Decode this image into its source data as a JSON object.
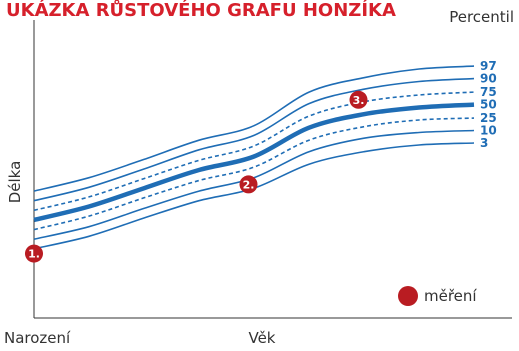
{
  "title": "UKÁZKA RŮSTOVÉHO GRAFU HONZÍKA",
  "chart_data": {
    "type": "line",
    "title": "UKÁZKA RŮSTOVÉHO GRAFU HONZÍKA",
    "xlabel": "Věk",
    "ylabel": "Délka",
    "x_start_label": "Narození",
    "legend_title": "Percentil",
    "measurement_legend": "měření",
    "series": [
      {
        "name": "97",
        "style": "solid",
        "values": [
          6.2,
          7.6,
          9.5,
          11.5,
          13.0,
          16.5,
          18.0,
          18.9,
          19.2
        ]
      },
      {
        "name": "90",
        "style": "solid",
        "values": [
          5.2,
          6.6,
          8.5,
          10.5,
          12.0,
          15.3,
          16.8,
          17.6,
          17.9
        ]
      },
      {
        "name": "75",
        "style": "dashed",
        "values": [
          4.2,
          5.6,
          7.5,
          9.4,
          10.9,
          14.0,
          15.5,
          16.2,
          16.5
        ]
      },
      {
        "name": "50",
        "style": "bold",
        "values": [
          3.2,
          4.6,
          6.5,
          8.4,
          9.8,
          12.8,
          14.2,
          14.9,
          15.2
        ]
      },
      {
        "name": "25",
        "style": "dashed",
        "values": [
          2.2,
          3.6,
          5.5,
          7.3,
          8.7,
          11.5,
          12.9,
          13.6,
          13.8
        ]
      },
      {
        "name": "10",
        "style": "solid",
        "values": [
          1.2,
          2.5,
          4.4,
          6.2,
          7.6,
          10.3,
          11.7,
          12.3,
          12.5
        ]
      },
      {
        "name": "3",
        "style": "solid",
        "values": [
          0.2,
          1.5,
          3.4,
          5.2,
          6.5,
          9.0,
          10.3,
          11.0,
          11.2
        ]
      }
    ],
    "x": [
      0,
      1,
      2,
      3,
      4,
      5,
      6,
      7,
      8
    ],
    "xlim": [
      0,
      8
    ],
    "ylim": [
      -7,
      24
    ],
    "measurements": [
      {
        "label": "1.",
        "x": 0,
        "y": -0.3
      },
      {
        "label": "2.",
        "x": 3.9,
        "y": 6.9
      },
      {
        "label": "3.",
        "x": 5.9,
        "y": 15.7
      }
    ],
    "colors": {
      "title": "#d6202b",
      "lines": "#1f6db5",
      "marker": "#b91c22",
      "axis": "#333333"
    }
  }
}
